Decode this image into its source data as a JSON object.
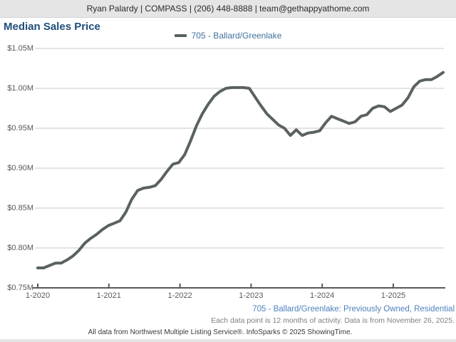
{
  "header": {
    "contact_line": "Ryan Palardy | COMPASS | (206) 448-8888 | team@gethappyathome.com"
  },
  "page_title": "Median Sales Price",
  "legend": {
    "label": "705 - Ballard/Greenlake"
  },
  "chart_data": {
    "type": "line",
    "title": "Median Sales Price",
    "unit": "USD millions",
    "x_interval": "monthly",
    "x_start": "2020-01",
    "x_end": "2025-10",
    "x_tick_labels": [
      "1-2020",
      "1-2021",
      "1-2022",
      "1-2023",
      "1-2024",
      "1-2025"
    ],
    "y_tick_labels": [
      "$0.75M",
      "$0.80M",
      "$0.85M",
      "$0.90M",
      "$0.95M",
      "$1.00M",
      "$1.05M"
    ],
    "ylim": [
      0.75,
      1.05
    ],
    "grid": "horizontal",
    "legend_position": "top-center",
    "series": [
      {
        "name": "705 - Ballard/Greenlake",
        "color": "#5a625f",
        "values": [
          0.775,
          0.775,
          0.778,
          0.781,
          0.781,
          0.785,
          0.79,
          0.797,
          0.806,
          0.812,
          0.817,
          0.823,
          0.828,
          0.831,
          0.834,
          0.845,
          0.861,
          0.872,
          0.875,
          0.876,
          0.878,
          0.886,
          0.896,
          0.905,
          0.907,
          0.917,
          0.934,
          0.953,
          0.968,
          0.98,
          0.99,
          0.996,
          1.0,
          1.001,
          1.001,
          1.001,
          1.0,
          0.989,
          0.978,
          0.968,
          0.961,
          0.954,
          0.95,
          0.941,
          0.948,
          0.941,
          0.944,
          0.945,
          0.947,
          0.957,
          0.965,
          0.962,
          0.959,
          0.956,
          0.958,
          0.965,
          0.967,
          0.975,
          0.978,
          0.977,
          0.971,
          0.975,
          0.979,
          0.988,
          1.002,
          1.009,
          1.011,
          1.011,
          1.015,
          1.02
        ]
      }
    ]
  },
  "footer": {
    "series_caption": "705 - Ballard/Greenlake: Previously Owned, Residential",
    "data_note": "Each data point is 12 months of activity. Data is from November 26, 2025.",
    "attribution": "All data from Northwest Multiple Listing Service®. InfoSparks © 2025 ShowingTime."
  },
  "colors": {
    "line": "#5a625f",
    "title_text": "#1f4e79",
    "legend_text": "#41719c",
    "footer_caption_text": "#4f81bd",
    "grid_line": "#c9c9c9",
    "axis_line": "#595959",
    "header_bg": "#e5e5e5"
  }
}
